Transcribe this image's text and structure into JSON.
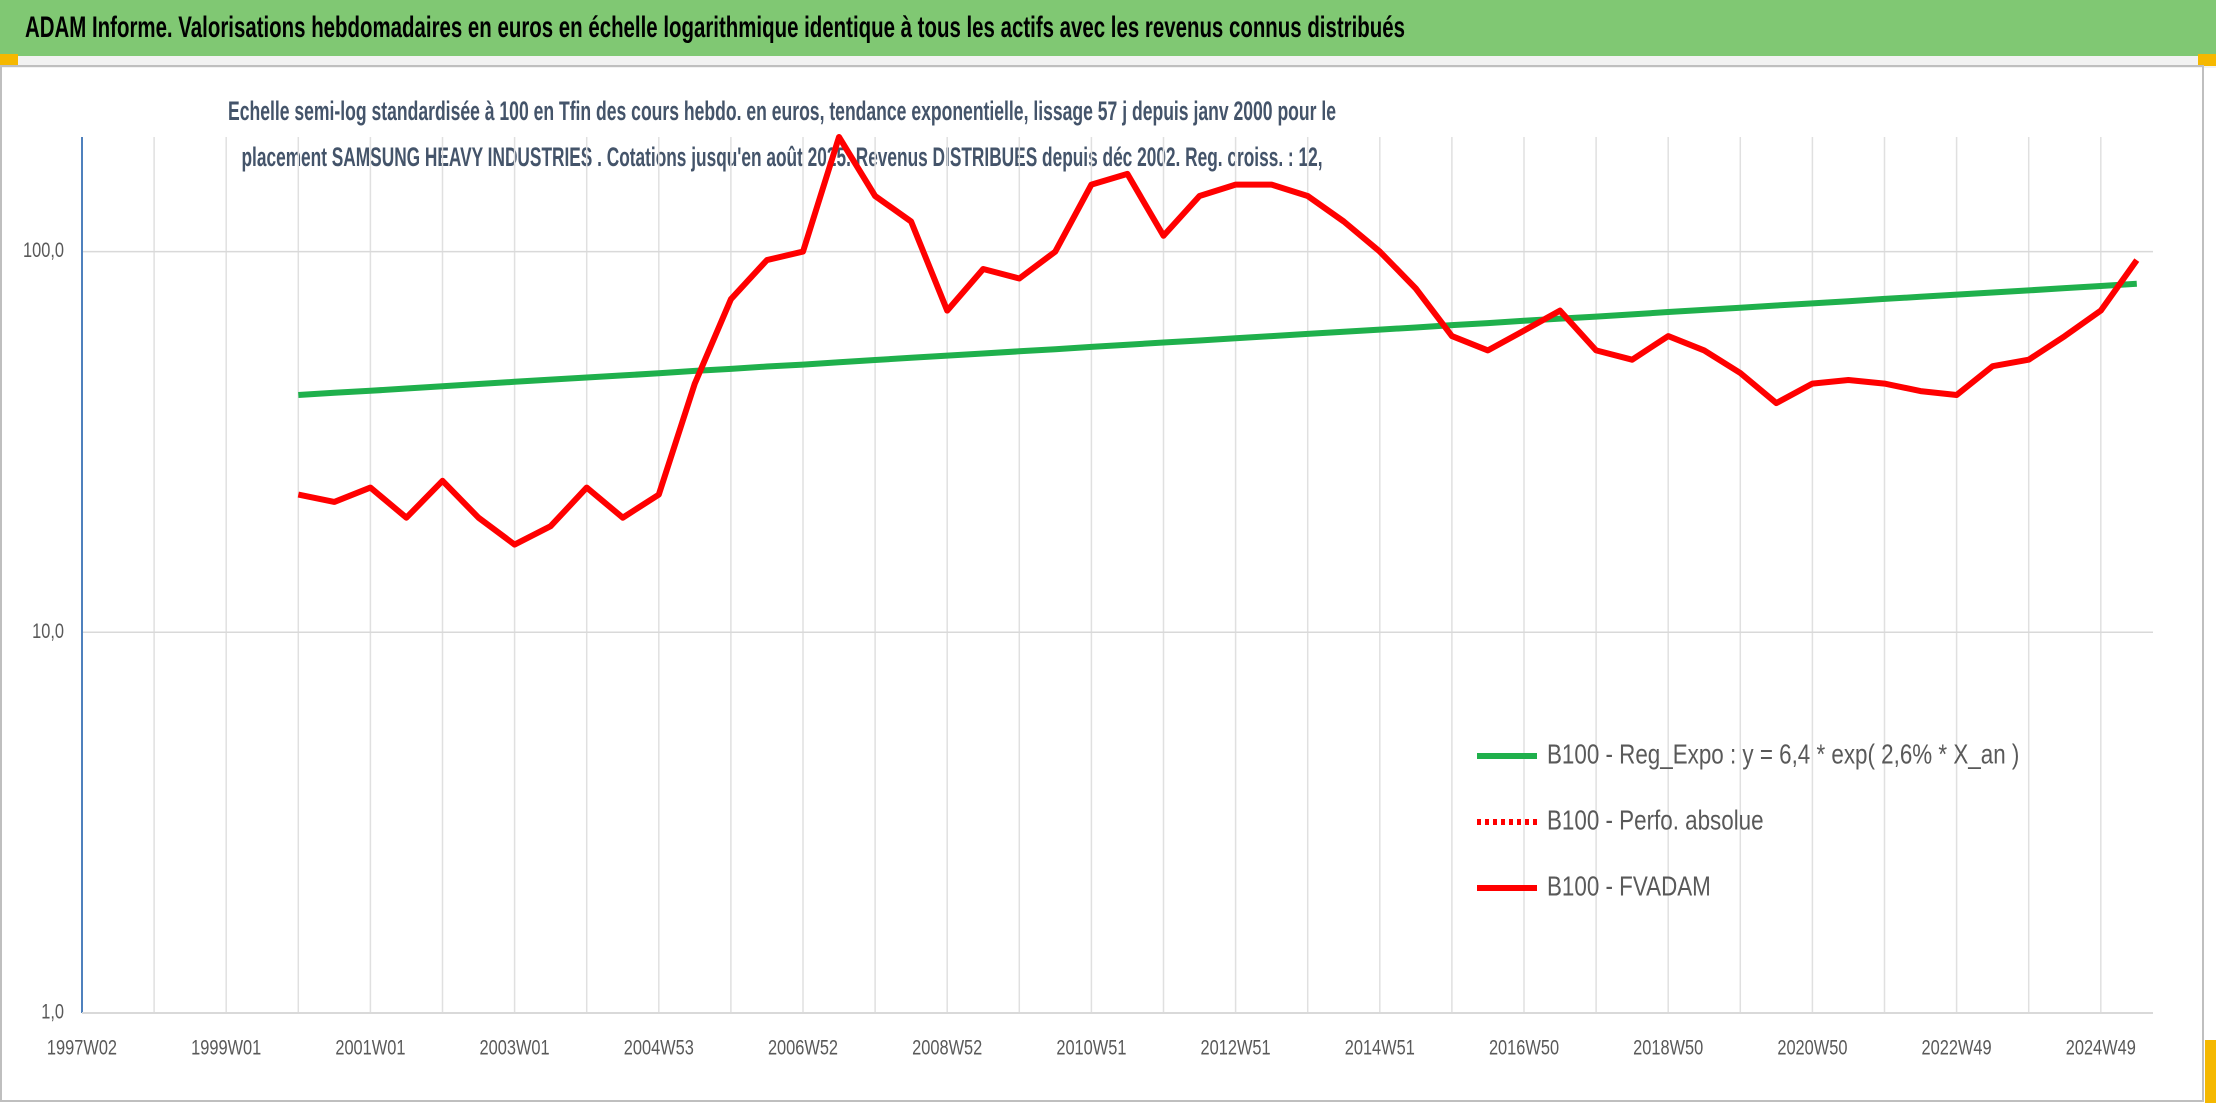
{
  "chart_data": {
    "type": "line",
    "title": "ADAM Informe. Valorisations hebdomadaires en euros en échelle logarithmique identique à tous les actifs avec les revenus connus distribués",
    "subtitle": [
      "Echelle semi-log standardisée à 100 en Tfin des cours hebdo. en euros, tendance exponentielle, lissage 57 j depuis janv 2000 pour le",
      "placement SAMSUNG HEAVY INDUSTRIES . Cotations jusqu'en août 2025. Revenus DISTRIBUES depuis déc 2002. Reg. croiss. : 12,"
    ],
    "categories": [
      "1997W02",
      null,
      null,
      null,
      "1999W01",
      null,
      null,
      null,
      "2001W01",
      null,
      null,
      null,
      "2003W01",
      null,
      null,
      null,
      "2004W53",
      null,
      null,
      null,
      "2006W52",
      null,
      null,
      null,
      "2008W52",
      null,
      null,
      null,
      "2010W51",
      null,
      null,
      null,
      "2012W51",
      null,
      null,
      null,
      "2014W51",
      null,
      null,
      null,
      "2016W50",
      null,
      null,
      null,
      "2018W50",
      null,
      null,
      null,
      "2020W50",
      null,
      null,
      null,
      "2022W49",
      null,
      null,
      null,
      "2024W49",
      null
    ],
    "series": [
      {
        "name": "B100 - Reg_Expo : y = 6,4 * exp( 2,6% *  X_an )",
        "color": "#1fb04c",
        "line_style": "solid",
        "values": [
          null,
          null,
          null,
          null,
          null,
          null,
          42.0,
          42.6,
          43.1,
          43.7,
          44.3,
          44.9,
          45.5,
          46.1,
          46.7,
          47.3,
          47.9,
          48.6,
          49.2,
          49.9,
          50.5,
          51.2,
          51.9,
          52.6,
          53.3,
          54.0,
          54.7,
          55.4,
          56.2,
          56.9,
          57.7,
          58.4,
          59.2,
          60.0,
          60.8,
          61.6,
          62.4,
          63.2,
          64.1,
          64.9,
          65.8,
          66.7,
          67.5,
          68.4,
          69.4,
          70.3,
          71.2,
          72.2,
          73.1,
          74.1,
          75.1,
          76.1,
          77.1,
          78.1,
          79.1,
          80.2,
          81.2,
          82.3
        ]
      },
      {
        "name": "B100 - Perfo. absolue",
        "color": "#ff0000",
        "line_style": "dotted",
        "values": [
          null,
          null,
          null,
          null,
          null,
          null,
          null,
          null,
          null,
          null,
          null,
          null,
          null,
          null,
          null,
          null,
          null,
          null,
          null,
          null,
          null,
          null,
          null,
          null,
          null,
          null,
          null,
          null,
          null,
          null,
          null,
          null,
          null,
          null,
          null,
          null,
          null,
          null,
          null,
          null,
          null,
          null,
          null,
          null,
          null,
          null,
          null,
          null,
          null,
          null,
          null,
          null,
          null,
          null,
          null,
          null,
          null,
          null
        ]
      },
      {
        "name": "B100 - FVADAM",
        "color": "#ff0000",
        "line_style": "solid",
        "values": [
          null,
          null,
          null,
          null,
          null,
          null,
          23,
          22,
          24,
          20,
          25,
          20,
          17,
          19,
          24,
          20,
          23,
          45,
          75,
          95,
          100,
          200,
          140,
          120,
          70,
          90,
          85,
          100,
          150,
          160,
          110,
          140,
          150,
          150,
          140,
          120,
          100,
          80,
          60,
          55,
          62,
          70,
          55,
          52,
          60,
          55,
          48,
          40,
          45,
          46,
          45,
          43,
          42,
          50,
          52,
          60,
          70,
          95
        ]
      }
    ],
    "log_scale": true,
    "ylim": [
      1,
      200
    ],
    "yticks": [
      {
        "value": 1,
        "label": "1,0"
      },
      {
        "value": 10,
        "label": "10,0"
      },
      {
        "value": 100,
        "label": "100,0"
      }
    ],
    "grid": true,
    "legend": "lower right"
  }
}
